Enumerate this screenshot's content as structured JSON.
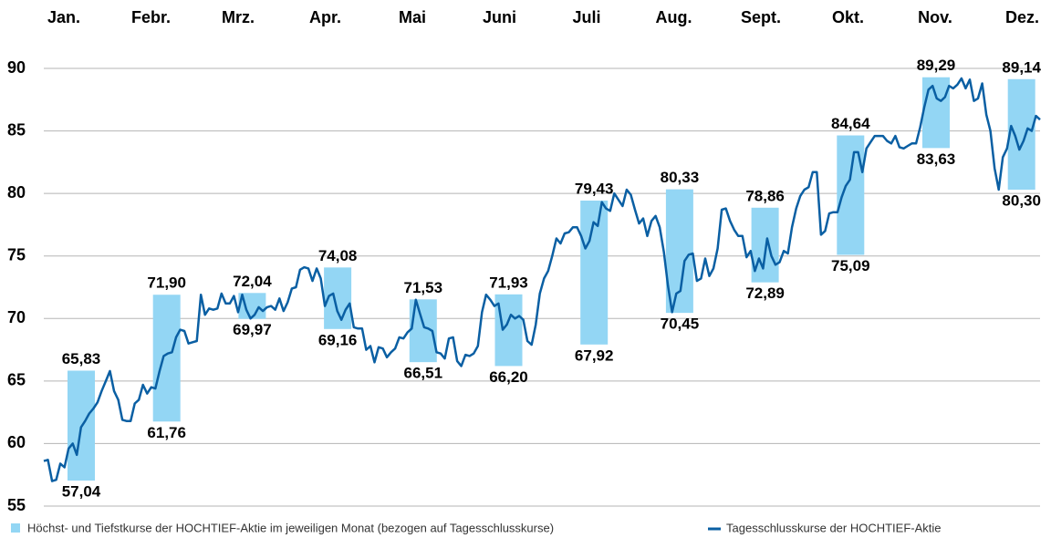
{
  "chart_data": {
    "type": "range-line",
    "categories": [
      "Jan.",
      "Febr.",
      "Mrz.",
      "Apr.",
      "Mai",
      "Juni",
      "Juli",
      "Aug.",
      "Sept.",
      "Okt.",
      "Nov.",
      "Dez."
    ],
    "ylim": [
      55,
      90
    ],
    "yticks": [
      55,
      60,
      65,
      70,
      75,
      80,
      85,
      90
    ],
    "grid": true,
    "ranges": {
      "name": "Höchst- und Tiefstkurse der HOCHTIEF-Aktie im jeweiligen Monat (bezogen auf Tagesschlusskurse)",
      "color": "#93d6f4",
      "high": [
        65.83,
        71.9,
        72.04,
        74.08,
        71.53,
        71.93,
        79.43,
        80.33,
        78.86,
        84.64,
        89.29,
        89.14
      ],
      "low": [
        57.04,
        61.76,
        69.97,
        69.16,
        66.51,
        66.2,
        67.92,
        70.45,
        72.89,
        75.09,
        83.63,
        80.3
      ],
      "high_labels": [
        "65,83",
        "71,90",
        "72,04",
        "74,08",
        "71,53",
        "71,93",
        "79,43",
        "80,33",
        "78,86",
        "84,64",
        "89,29",
        "89,14"
      ],
      "low_labels": [
        "57,04",
        "61,76",
        "69,97",
        "69,16",
        "66,51",
        "66,20",
        "67,92",
        "70,45",
        "72,89",
        "75,09",
        "83,63",
        "80,30"
      ]
    },
    "line": {
      "name": "Tagesschlusskurse der HOCHTIEF-Aktie",
      "color": "#0a5fa3",
      "values": [
        58.6,
        58.7,
        57.0,
        57.1,
        58.4,
        58.1,
        59.6,
        60.0,
        59.1,
        61.3,
        61.8,
        62.4,
        62.8,
        63.3,
        64.2,
        65.0,
        65.8,
        64.2,
        63.5,
        61.9,
        61.8,
        61.8,
        63.2,
        63.5,
        64.7,
        64.0,
        64.5,
        64.4,
        65.8,
        67.0,
        67.2,
        67.3,
        68.5,
        69.1,
        69.0,
        68.0,
        68.1,
        68.2,
        71.9,
        70.3,
        70.8,
        70.7,
        70.8,
        72.0,
        71.2,
        71.2,
        71.8,
        70.5,
        71.9,
        70.7,
        70.0,
        70.3,
        70.9,
        70.6,
        70.9,
        71.0,
        70.7,
        71.6,
        70.6,
        71.3,
        72.4,
        72.5,
        73.9,
        74.1,
        74.0,
        73.0,
        74.0,
        73.2,
        71.0,
        71.8,
        72.0,
        70.6,
        69.9,
        70.7,
        71.2,
        69.3,
        69.2,
        69.2,
        67.5,
        67.8,
        66.5,
        67.7,
        67.6,
        66.9,
        67.3,
        67.6,
        68.5,
        68.4,
        68.9,
        69.2,
        71.5,
        70.4,
        69.3,
        69.2,
        69.0,
        67.3,
        67.2,
        66.8,
        68.4,
        68.5,
        66.6,
        66.2,
        67.1,
        67.0,
        67.2,
        67.8,
        70.5,
        71.9,
        71.5,
        71.0,
        71.2,
        69.1,
        69.5,
        70.3,
        70.0,
        70.2,
        69.9,
        68.2,
        67.9,
        69.5,
        72.0,
        73.2,
        73.8,
        75.0,
        76.4,
        76.0,
        76.8,
        76.9,
        77.3,
        77.3,
        76.6,
        75.6,
        76.2,
        77.7,
        77.4,
        79.3,
        78.8,
        78.6,
        80.0,
        79.5,
        79.0,
        80.3,
        79.9,
        78.7,
        77.6,
        78.0,
        76.6,
        77.8,
        78.2,
        77.3,
        75.3,
        72.6,
        70.5,
        72.0,
        72.2,
        74.6,
        75.1,
        75.2,
        73.0,
        73.2,
        74.8,
        73.4,
        74.0,
        75.6,
        78.7,
        78.8,
        77.8,
        77.1,
        76.6,
        76.6,
        74.9,
        75.4,
        73.8,
        74.8,
        74.0,
        76.4,
        75.0,
        74.3,
        74.5,
        75.4,
        75.2,
        77.3,
        78.8,
        79.8,
        80.3,
        80.5,
        81.7,
        81.7,
        76.7,
        77.0,
        78.4,
        78.5,
        78.5,
        79.7,
        80.6,
        81.1,
        83.3,
        83.3,
        81.7,
        83.6,
        84.1,
        84.6,
        84.6,
        84.6,
        84.2,
        84.0,
        84.6,
        83.7,
        83.6,
        83.8,
        84.0,
        84.0,
        85.3,
        86.9,
        88.3,
        88.6,
        87.6,
        87.4,
        87.7,
        88.6,
        88.4,
        88.7,
        89.2,
        88.4,
        89.1,
        87.4,
        87.6,
        88.8,
        86.3,
        85.0,
        82.0,
        80.3,
        82.9,
        83.6,
        85.4,
        84.6,
        83.5,
        84.2,
        85.2,
        85.0,
        86.2,
        85.9
      ]
    }
  }
}
